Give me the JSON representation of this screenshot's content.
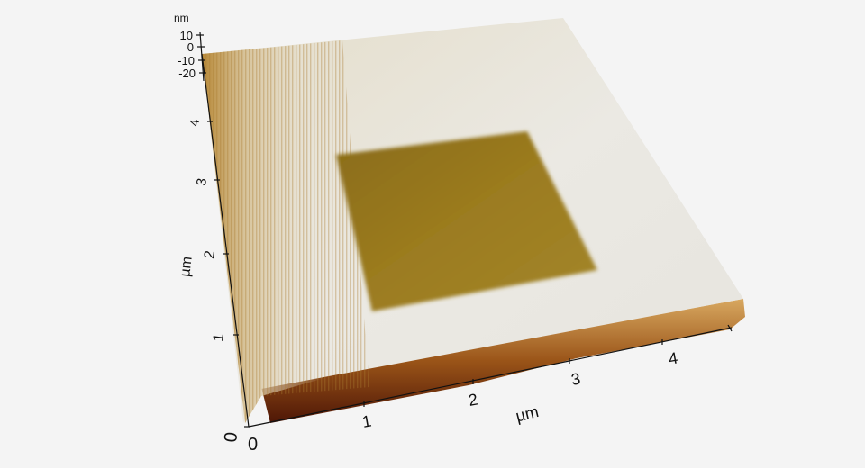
{
  "chart_data": {
    "type": "surface",
    "title": "",
    "x_axis": {
      "label": "µm",
      "ticks": [
        "0",
        "1",
        "2",
        "3",
        "4"
      ],
      "range": [
        0,
        4.6
      ]
    },
    "y_axis": {
      "label": "µm",
      "ticks": [
        "0",
        "1",
        "2",
        "3",
        "4"
      ],
      "range": [
        0,
        4.6
      ]
    },
    "z_axis": {
      "label": "nm",
      "ticks": [
        "10",
        "0",
        "-10",
        "-20"
      ],
      "range": [
        -20,
        10
      ]
    },
    "features": [
      {
        "name": "",
        "x_range": [
          1.0,
          3.6
        ],
        "y_range": [
          1.1,
          3.6
        ],
        "relative_height": "recessed"
      }
    ],
    "colormap": [
      "#5a1a08",
      "#8a4a10",
      "#c08a30",
      "#e6d9b8",
      "#ecebe6"
    ],
    "grid": false
  }
}
